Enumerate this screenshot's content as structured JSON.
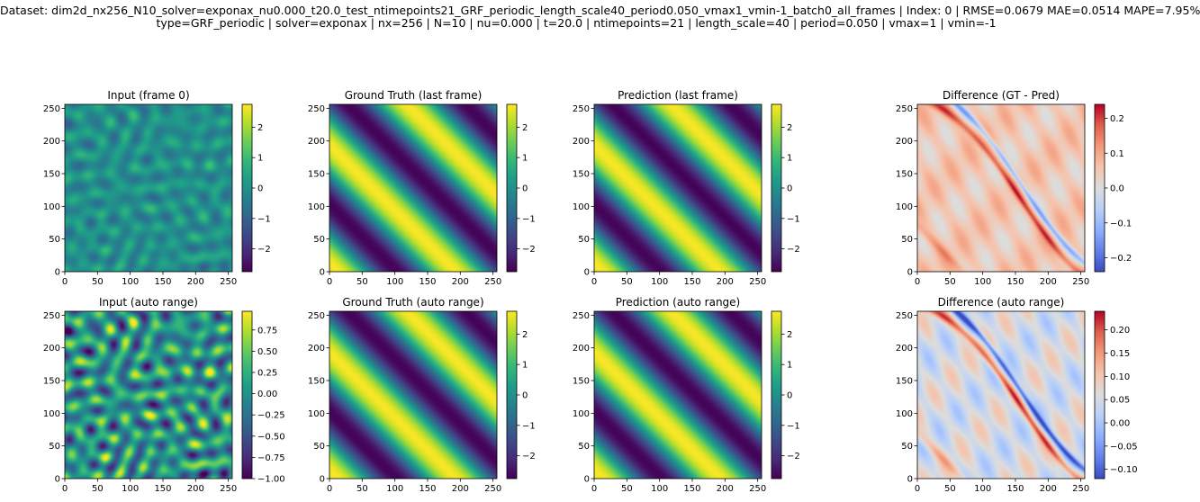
{
  "figure": {
    "title_line1": "Dataset: dim2d_nx256_N10_solver=exponax_nu0.000_t20.0_test_ntimepoints21_GRF_periodic_length_scale40_period0.050_vmax1_vmin-1_batch0_all_frames | Index: 0 | RMSE=0.0679  MAE=0.0514  MAPE=7.95%",
    "title_line2": "type=GRF_periodic | solver=exponax | nx=256 | N=10 | nu=0.000 | t=20.0 | ntimepoints=21 | length_scale=40 | period=0.050 | vmax=1 | vmin=-1"
  },
  "chart_data": [
    {
      "type": "heatmap",
      "title": "Input (frame 0)",
      "field": "input_grf",
      "cmap": "viridis",
      "xlim": [
        0,
        256
      ],
      "ylim": [
        0,
        256
      ],
      "xticks": [
        0,
        50,
        100,
        150,
        200,
        250
      ],
      "yticks": [
        0,
        50,
        100,
        150,
        200,
        250
      ],
      "clim": [
        -2.75,
        2.75
      ],
      "cbar_ticks": [
        2,
        1,
        0,
        -1,
        -2
      ],
      "cbar_labels": [
        "2",
        "1",
        "0",
        "−1",
        "−2"
      ]
    },
    {
      "type": "heatmap",
      "title": "Ground Truth (last frame)",
      "field": "diagonal_wave",
      "cmap": "viridis",
      "xlim": [
        0,
        256
      ],
      "ylim": [
        0,
        256
      ],
      "xticks": [
        0,
        50,
        100,
        150,
        200,
        250
      ],
      "yticks": [
        0,
        50,
        100,
        150,
        200,
        250
      ],
      "clim": [
        -2.75,
        2.75
      ],
      "cbar_ticks": [
        2,
        1,
        0,
        -1,
        -2
      ],
      "cbar_labels": [
        "2",
        "1",
        "0",
        "−1",
        "−2"
      ]
    },
    {
      "type": "heatmap",
      "title": "Prediction (last frame)",
      "field": "diagonal_wave",
      "cmap": "viridis",
      "xlim": [
        0,
        256
      ],
      "ylim": [
        0,
        256
      ],
      "xticks": [
        0,
        50,
        100,
        150,
        200,
        250
      ],
      "yticks": [
        0,
        50,
        100,
        150,
        200,
        250
      ],
      "clim": [
        -2.75,
        2.75
      ],
      "cbar_ticks": [
        2,
        1,
        0,
        -1,
        -2
      ],
      "cbar_labels": [
        "2",
        "1",
        "0",
        "−1",
        "−2"
      ]
    },
    {
      "type": "heatmap",
      "title": "Difference (GT - Pred)",
      "field": "difference",
      "cmap": "coolwarm",
      "xlim": [
        0,
        256
      ],
      "ylim": [
        0,
        256
      ],
      "xticks": [
        0,
        50,
        100,
        150,
        200,
        250
      ],
      "yticks": [
        0,
        50,
        100,
        150,
        200,
        250
      ],
      "clim": [
        -0.24,
        0.24
      ],
      "cbar_ticks": [
        0.2,
        0.1,
        0.0,
        -0.1,
        -0.2
      ],
      "cbar_labels": [
        "0.2",
        "0.1",
        "0.0",
        "−0.1",
        "−0.2"
      ]
    },
    {
      "type": "heatmap",
      "title": "Input (auto range)",
      "field": "input_grf",
      "cmap": "viridis",
      "xlim": [
        0,
        256
      ],
      "ylim": [
        0,
        256
      ],
      "xticks": [
        0,
        50,
        100,
        150,
        200,
        250
      ],
      "yticks": [
        0,
        50,
        100,
        150,
        200,
        250
      ],
      "clim": [
        -1.0,
        0.97
      ],
      "cbar_ticks": [
        0.75,
        0.5,
        0.25,
        0.0,
        -0.25,
        -0.5,
        -0.75,
        -1.0
      ],
      "cbar_labels": [
        "0.75",
        "0.50",
        "0.25",
        "0.00",
        "−0.25",
        "−0.50",
        "−0.75",
        "−1.00"
      ]
    },
    {
      "type": "heatmap",
      "title": "Ground Truth (auto range)",
      "field": "diagonal_wave",
      "cmap": "viridis",
      "xlim": [
        0,
        256
      ],
      "ylim": [
        0,
        256
      ],
      "xticks": [
        0,
        50,
        100,
        150,
        200,
        250
      ],
      "yticks": [
        0,
        50,
        100,
        150,
        200,
        250
      ],
      "clim": [
        -2.75,
        2.75
      ],
      "cbar_ticks": [
        2,
        1,
        0,
        -1,
        -2
      ],
      "cbar_labels": [
        "2",
        "1",
        "0",
        "−1",
        "−2"
      ]
    },
    {
      "type": "heatmap",
      "title": "Prediction (auto range)",
      "field": "diagonal_wave",
      "cmap": "viridis",
      "xlim": [
        0,
        256
      ],
      "ylim": [
        0,
        256
      ],
      "xticks": [
        0,
        50,
        100,
        150,
        200,
        250
      ],
      "yticks": [
        0,
        50,
        100,
        150,
        200,
        250
      ],
      "clim": [
        -2.75,
        2.75
      ],
      "cbar_ticks": [
        2,
        1,
        0,
        -1,
        -2
      ],
      "cbar_labels": [
        "2",
        "1",
        "0",
        "−1",
        "−2"
      ]
    },
    {
      "type": "heatmap",
      "title": "Difference (auto range)",
      "field": "difference",
      "cmap": "coolwarm",
      "xlim": [
        0,
        256
      ],
      "ylim": [
        0,
        256
      ],
      "xticks": [
        0,
        50,
        100,
        150,
        200,
        250
      ],
      "yticks": [
        0,
        50,
        100,
        150,
        200,
        250
      ],
      "clim": [
        -0.12,
        0.24
      ],
      "cbar_ticks": [
        0.2,
        0.15,
        0.1,
        0.05,
        0.0,
        -0.05,
        -0.1
      ],
      "cbar_labels": [
        "0.20",
        "0.15",
        "0.10",
        "0.05",
        "0.00",
        "−0.05",
        "−0.10"
      ]
    }
  ]
}
